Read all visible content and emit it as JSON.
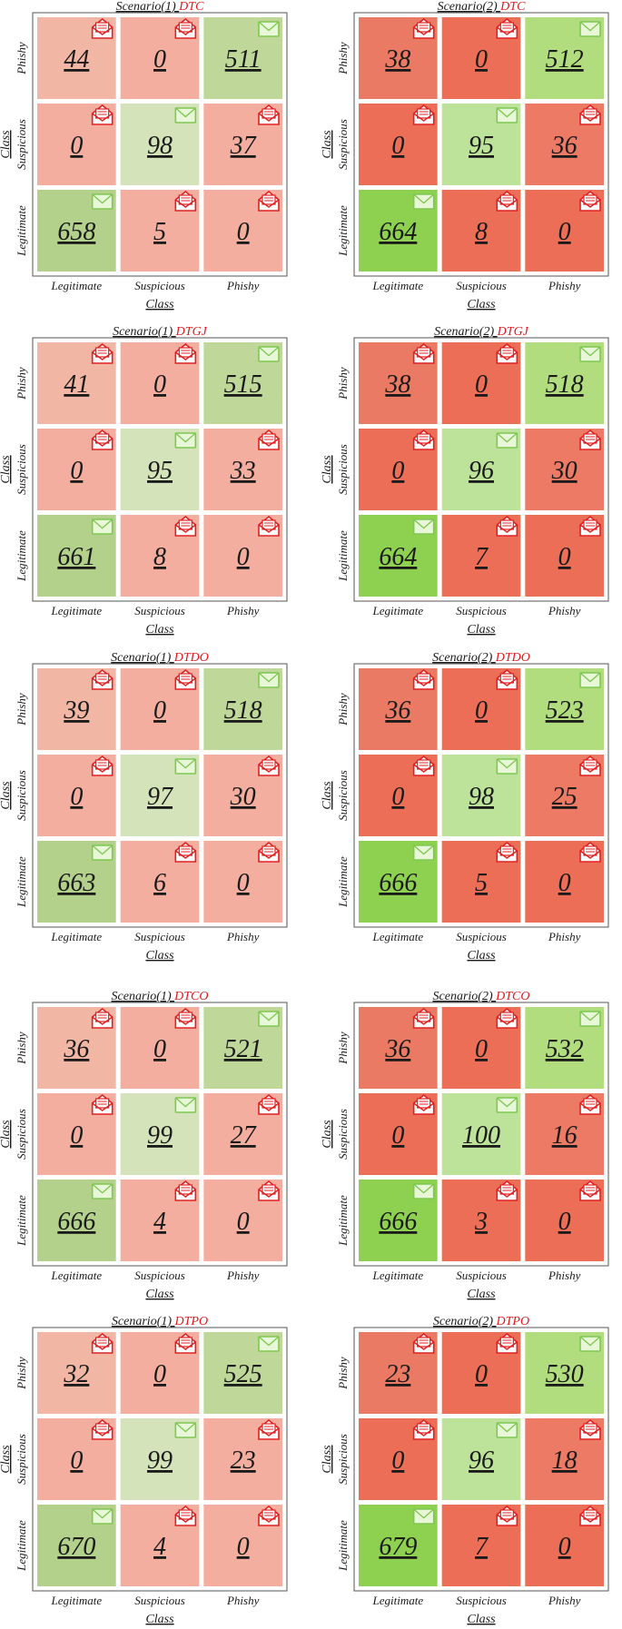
{
  "colors": {
    "correct_light": "#d4e3b9",
    "correct_mid": "#bfd89a",
    "correct_strong": "#8ed04f",
    "wrong_light": "#f4aea0",
    "wrong_strong": "#ec6e57",
    "title_accent": "#e01b1b",
    "icon_mail_ok": "#7ec850",
    "icon_mail_bad": "#e02020"
  },
  "icons": {
    "diagonal": "envelope-icon",
    "offdiagonal": "open-envelope-icon"
  },
  "chart_data": [
    {
      "type": "heatmap",
      "title_prefix": "Scenario(1)",
      "title_model": "DTC",
      "xlabel": "Class",
      "ylabel": "Class",
      "x_ticks": [
        "Legitimate",
        "Suspicious",
        "Phishy"
      ],
      "y_ticks": [
        "Phishy",
        "Suspicious",
        "Legitimate"
      ],
      "matrix": [
        [
          44,
          0,
          511
        ],
        [
          0,
          98,
          37
        ],
        [
          658,
          5,
          0
        ]
      ],
      "scheme": "light"
    },
    {
      "type": "heatmap",
      "title_prefix": "Scenario(2)",
      "title_model": "DTC",
      "xlabel": "Class",
      "ylabel": "Class",
      "x_ticks": [
        "Legitimate",
        "Suspicious",
        "Phishy"
      ],
      "y_ticks": [
        "Phishy",
        "Suspicious",
        "Legitimate"
      ],
      "matrix": [
        [
          38,
          0,
          512
        ],
        [
          0,
          95,
          36
        ],
        [
          664,
          8,
          0
        ]
      ],
      "scheme": "strong"
    },
    {
      "type": "heatmap",
      "title_prefix": "Scenario(1)",
      "title_model": "DTGJ",
      "xlabel": "Class",
      "ylabel": "Class",
      "x_ticks": [
        "Legitimate",
        "Suspicious",
        "Phishy"
      ],
      "y_ticks": [
        "Phishy",
        "Suspicious",
        "Legitimate"
      ],
      "matrix": [
        [
          41,
          0,
          515
        ],
        [
          0,
          95,
          33
        ],
        [
          661,
          8,
          0
        ]
      ],
      "scheme": "light"
    },
    {
      "type": "heatmap",
      "title_prefix": "Scenario(2)",
      "title_model": "DTGJ",
      "xlabel": "Class",
      "ylabel": "Class",
      "x_ticks": [
        "Legitimate",
        "Suspicious",
        "Phishy"
      ],
      "y_ticks": [
        "Phishy",
        "Suspicious",
        "Legitimate"
      ],
      "matrix": [
        [
          38,
          0,
          518
        ],
        [
          0,
          96,
          30
        ],
        [
          664,
          7,
          0
        ]
      ],
      "scheme": "strong"
    },
    {
      "type": "heatmap",
      "title_prefix": "Scenario(1)",
      "title_model": "DTDO",
      "xlabel": "Class",
      "ylabel": "Class",
      "x_ticks": [
        "Legitimate",
        "Suspicious",
        "Phishy"
      ],
      "y_ticks": [
        "Phishy",
        "Suspicious",
        "Legitimate"
      ],
      "matrix": [
        [
          39,
          0,
          518
        ],
        [
          0,
          97,
          30
        ],
        [
          663,
          6,
          0
        ]
      ],
      "scheme": "light"
    },
    {
      "type": "heatmap",
      "title_prefix": "Scenario(2)",
      "title_model": "DTDO",
      "xlabel": "Class",
      "ylabel": "Class",
      "x_ticks": [
        "Legitimate",
        "Suspicious",
        "Phishy"
      ],
      "y_ticks": [
        "Phishy",
        "Suspicious",
        "Legitimate"
      ],
      "matrix": [
        [
          36,
          0,
          523
        ],
        [
          0,
          98,
          25
        ],
        [
          666,
          5,
          0
        ]
      ],
      "scheme": "strong"
    },
    {
      "type": "heatmap",
      "title_prefix": "Scenario(1)",
      "title_model": "DTCO",
      "xlabel": "Class",
      "ylabel": "Class",
      "x_ticks": [
        "Legitimate",
        "Suspicious",
        "Phishy"
      ],
      "y_ticks": [
        "Phishy",
        "Suspicious",
        "Legitimate"
      ],
      "matrix": [
        [
          36,
          0,
          521
        ],
        [
          0,
          99,
          27
        ],
        [
          666,
          4,
          0
        ]
      ],
      "scheme": "light"
    },
    {
      "type": "heatmap",
      "title_prefix": "Scenario(2)",
      "title_model": "DTCO",
      "xlabel": "Class",
      "ylabel": "Class",
      "x_ticks": [
        "Legitimate",
        "Suspicious",
        "Phishy"
      ],
      "y_ticks": [
        "Phishy",
        "Suspicious",
        "Legitimate"
      ],
      "matrix": [
        [
          36,
          0,
          532
        ],
        [
          0,
          100,
          16
        ],
        [
          666,
          3,
          0
        ]
      ],
      "scheme": "strong"
    },
    {
      "type": "heatmap",
      "title_prefix": "Scenario(1)",
      "title_model": "DTPO",
      "xlabel": "Class",
      "ylabel": "Class",
      "x_ticks": [
        "Legitimate",
        "Suspicious",
        "Phishy"
      ],
      "y_ticks": [
        "Phishy",
        "Suspicious",
        "Legitimate"
      ],
      "matrix": [
        [
          32,
          0,
          525
        ],
        [
          0,
          99,
          23
        ],
        [
          670,
          4,
          0
        ]
      ],
      "scheme": "light"
    },
    {
      "type": "heatmap",
      "title_prefix": "Scenario(2)",
      "title_model": "DTPO",
      "xlabel": "Class",
      "ylabel": "Class",
      "x_ticks": [
        "Legitimate",
        "Suspicious",
        "Phishy"
      ],
      "y_ticks": [
        "Phishy",
        "Suspicious",
        "Legitimate"
      ],
      "matrix": [
        [
          23,
          0,
          530
        ],
        [
          0,
          96,
          18
        ],
        [
          679,
          7,
          0
        ]
      ],
      "scheme": "strong"
    }
  ]
}
